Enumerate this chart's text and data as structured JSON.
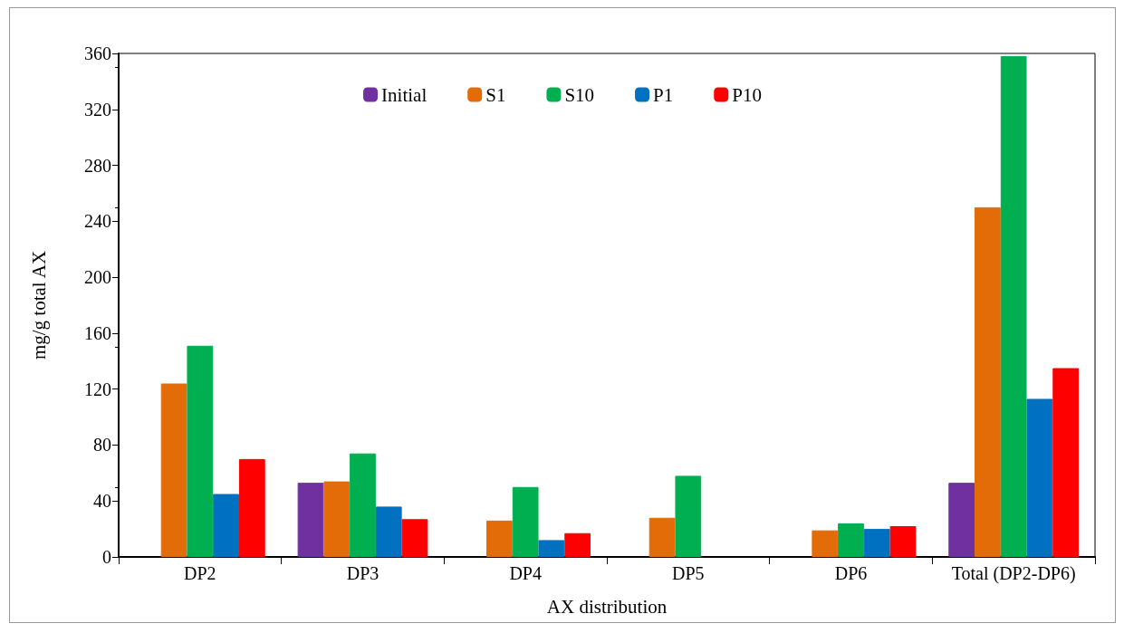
{
  "chart_data": {
    "type": "bar",
    "xlabel": "AX distribution",
    "ylabel": "mg/g total AX",
    "categories": [
      "DP2",
      "DP3",
      "DP4",
      "DP5",
      "DP6",
      "Total (DP2-DP6)"
    ],
    "series": [
      {
        "name": "Initial",
        "color": "#7030a0",
        "values": [
          null,
          53,
          null,
          null,
          null,
          53
        ]
      },
      {
        "name": "S1",
        "color": "#e36c09",
        "values": [
          124,
          54,
          26,
          28,
          19,
          250
        ]
      },
      {
        "name": "S10",
        "color": "#00b050",
        "values": [
          151,
          74,
          50,
          58,
          24,
          358
        ]
      },
      {
        "name": "P1",
        "color": "#0070c0",
        "values": [
          45,
          36,
          12,
          null,
          20,
          113
        ]
      },
      {
        "name": "P10",
        "color": "#ff0000",
        "values": [
          70,
          27,
          17,
          null,
          22,
          135
        ]
      }
    ],
    "ylim": [
      0,
      360
    ],
    "yticks": [
      0,
      40,
      80,
      120,
      160,
      200,
      240,
      280,
      320,
      360
    ],
    "grid": false,
    "legend": "top"
  }
}
